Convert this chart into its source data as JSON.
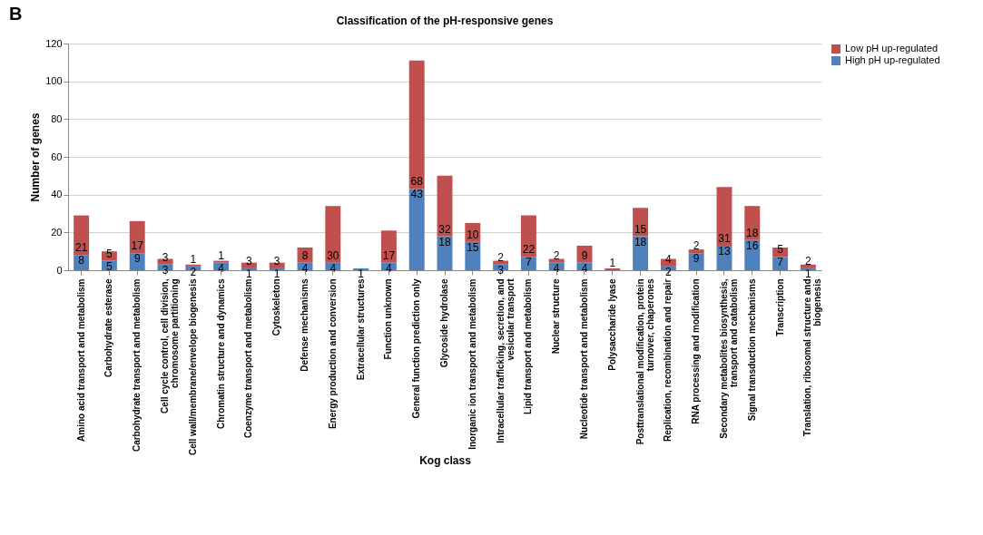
{
  "chart_data": {
    "type": "bar",
    "title": "Classification of the pH-responsive genes",
    "xlabel": "Kog class",
    "ylabel": "Number of genes",
    "annotations": [
      "B"
    ],
    "categories": [
      "Amino acid transport and metabolism",
      "Carbohydrate esterase",
      "Carbohydrate transport and metabolism",
      "Cell cycle control, cell division, chromosome partitioning",
      "Cell wall/membrane/envelope biogenesis",
      "Chromatin structure and dynamics",
      "Coenzyme transport and metabolism",
      "Cytoskeleton",
      "Defense mechanisms",
      "Energy production and conversion",
      "Extracellular structures",
      "Function unknown",
      "General function prediction only",
      "Glycoside hydrolase",
      "Inorganic ion transport and metabolism",
      "Intracellular trafficking, secretion, and vesicular transport",
      "Lipid transport and metabolism",
      "Nuclear structure",
      "Nucleotide transport and metabolism",
      "Polysaccharide lyase",
      "Posttranslational modification, protein turnover, chaperones",
      "Replication, recombination and repair",
      "RNA processing and modification",
      "Secondary metabolites biosynthesis, transport and catabolism",
      "Signal transduction mechanisms",
      "Transcription",
      "Translation, ribosomal structure and biogenesis"
    ],
    "series": [
      {
        "name": "High pH up-regulated",
        "color": "#4f81bd",
        "values": [
          8,
          5,
          9,
          3,
          2,
          4,
          1,
          1,
          4,
          4,
          1,
          4,
          43,
          18,
          15,
          3,
          7,
          4,
          4,
          null,
          18,
          2,
          9,
          13,
          16,
          7,
          1
        ]
      },
      {
        "name": "Low pH up-regulated",
        "color": "#c0504d",
        "values": [
          21,
          5,
          17,
          3,
          1,
          1,
          3,
          3,
          8,
          30,
          null,
          17,
          68,
          32,
          10,
          2,
          22,
          2,
          9,
          1,
          15,
          4,
          2,
          31,
          18,
          5,
          2
        ]
      }
    ],
    "stacked": true,
    "data_labels": true,
    "ylim": [
      0,
      120
    ],
    "yticks": [
      0,
      20,
      40,
      60,
      80,
      100,
      120
    ],
    "grid": "y",
    "legend": "right"
  }
}
